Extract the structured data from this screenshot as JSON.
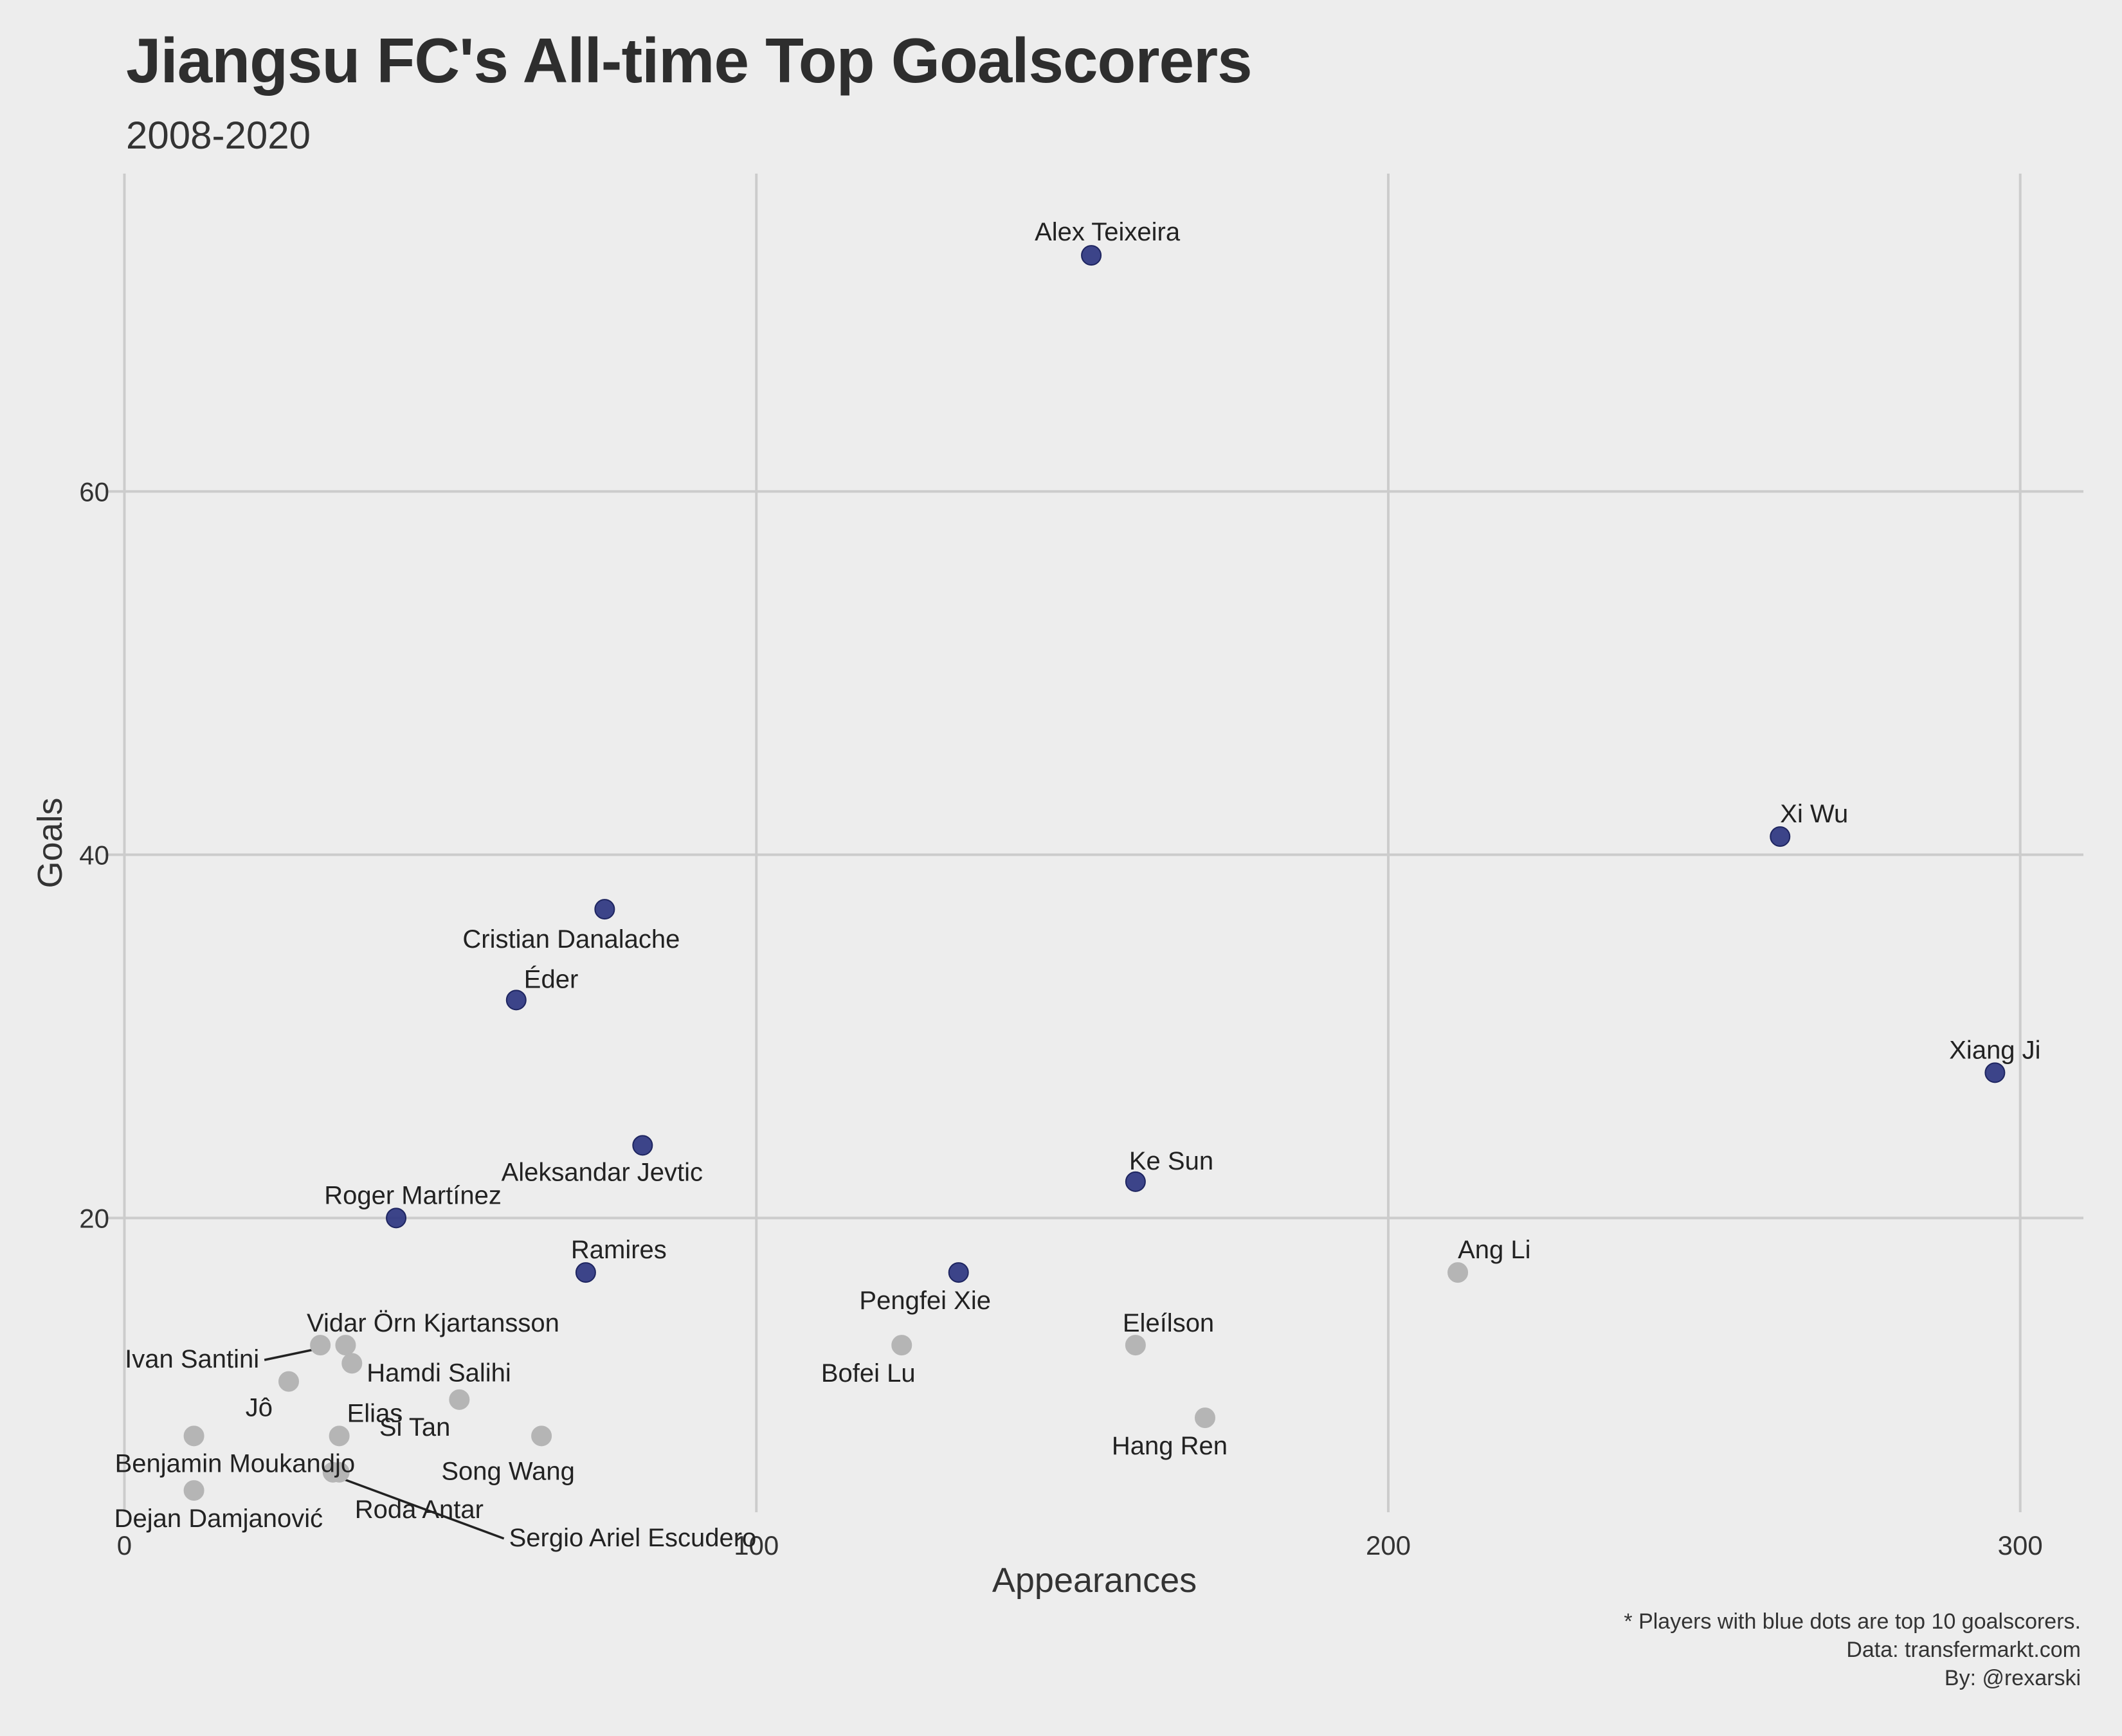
{
  "title": "Jiangsu FC's All-time Top Goalscorers",
  "subtitle": "2008-2020",
  "caption": [
    "* Players with blue dots are top 10 goalscorers.",
    "Data: transfermarkt.com",
    "By: @rexarski"
  ],
  "colors": {
    "background": "#ededed",
    "grid": "#cccccc",
    "top10": "#2c3580",
    "other": "#b5b5b5",
    "text": "#2e2e2e"
  },
  "chart_data": {
    "type": "scatter",
    "xlabel": "Appearances",
    "ylabel": "Goals",
    "xlim": [
      -3,
      310
    ],
    "ylim": [
      3.8,
      77.5
    ],
    "xticks": [
      0,
      100,
      200,
      300
    ],
    "yticks": [
      20,
      40,
      60
    ],
    "grid": true,
    "legend": "none",
    "points": [
      {
        "name": "Alex Teixeira",
        "x": 153,
        "y": 73,
        "top10": true
      },
      {
        "name": "Xi Wu",
        "x": 262,
        "y": 41,
        "top10": true
      },
      {
        "name": "Cristian Danalache",
        "x": 76,
        "y": 37,
        "top10": true
      },
      {
        "name": "Éder",
        "x": 62,
        "y": 32,
        "top10": true
      },
      {
        "name": "Xiang Ji",
        "x": 296,
        "y": 28,
        "top10": true
      },
      {
        "name": "Aleksandar Jevtic",
        "x": 82,
        "y": 24,
        "top10": true
      },
      {
        "name": "Ke Sun",
        "x": 160,
        "y": 22,
        "top10": true
      },
      {
        "name": "Roger Martínez",
        "x": 43,
        "y": 20,
        "top10": true
      },
      {
        "name": "Ramires",
        "x": 73,
        "y": 17,
        "top10": true
      },
      {
        "name": "Pengfei Xie",
        "x": 132,
        "y": 17,
        "top10": true
      },
      {
        "name": "Ang Li",
        "x": 211,
        "y": 17,
        "top10": false
      },
      {
        "name": "Eleílson",
        "x": 160,
        "y": 13,
        "top10": false
      },
      {
        "name": "Bofei Lu",
        "x": 123,
        "y": 13,
        "top10": false
      },
      {
        "name": "Vidar Örn Kjartansson",
        "x": 35,
        "y": 13,
        "top10": false
      },
      {
        "name": "Ivan Santini",
        "x": 31,
        "y": 13,
        "top10": false
      },
      {
        "name": "Hamdi Salihi",
        "x": 36,
        "y": 12,
        "top10": false
      },
      {
        "name": "Jô",
        "x": 26,
        "y": 11,
        "top10": false
      },
      {
        "name": "Si Tan",
        "x": 53,
        "y": 10,
        "top10": false
      },
      {
        "name": "Hang Ren",
        "x": 171,
        "y": 9,
        "top10": false
      },
      {
        "name": "Elias",
        "x": 34,
        "y": 8,
        "top10": false
      },
      {
        "name": "Song Wang",
        "x": 66,
        "y": 8,
        "top10": false
      },
      {
        "name": "Benjamin Moukandjo",
        "x": 11,
        "y": 8,
        "top10": false
      },
      {
        "name": "Roda Antar",
        "x": 33,
        "y": 6,
        "top10": false
      },
      {
        "name": "Sergio Ariel Escudero",
        "x": 34,
        "y": 6,
        "top10": false
      },
      {
        "name": "Dejan Damjanović",
        "x": 11,
        "y": 5,
        "top10": false
      }
    ]
  }
}
